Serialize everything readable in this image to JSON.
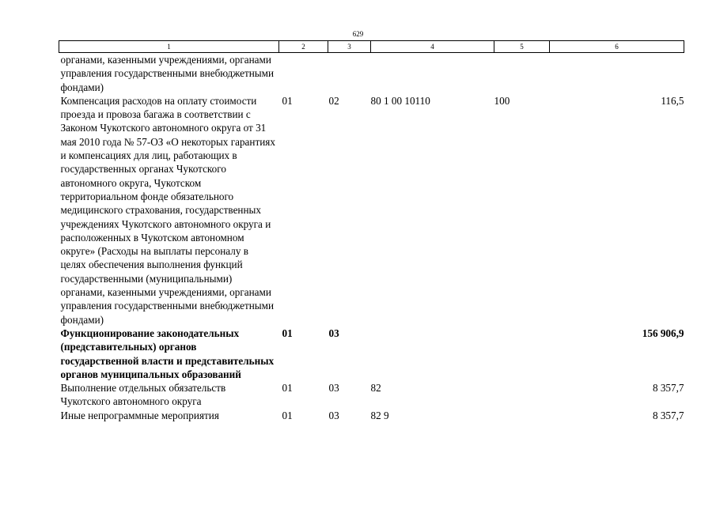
{
  "page_number": "629",
  "columns": [
    "1",
    "2",
    "3",
    "4",
    "5",
    "6"
  ],
  "rows": [
    {
      "name": "органами, казенными учреждениями, органами управления государственными внебюджетными фондами)",
      "section": "",
      "subsection": "",
      "target": "",
      "type": "",
      "amount": "",
      "bold": false
    },
    {
      "name": "Компенсация расходов на оплату стоимости проезда и провоза багажа в соответствии с Законом Чукотского автономного округа от 31 мая 2010 года № 57-ОЗ «О некоторых гарантиях и компенсациях для лиц, работающих в государственных органах Чукотского автономного округа, Чукотском территориальном фонде обязательного медицинского страхования, государственных учреждениях Чукотского автономного округа и расположенных в Чукотском автономном округе» (Расходы на выплаты персоналу в целях обеспечения выполнения функций государственными (муниципальными) органами, казенными учреждениями, органами управления государственными внебюджетными фондами)",
      "section": "01",
      "subsection": "02",
      "target": "80 1 00 10110",
      "type": "100",
      "amount": "116,5",
      "bold": false
    },
    {
      "name": "Функционирование законодательных (представительных) органов государственной власти и представительных органов муниципальных образований",
      "section": "01",
      "subsection": "03",
      "target": "",
      "type": "",
      "amount": "156 906,9",
      "bold": true
    },
    {
      "name": "Выполнение отдельных обязательств Чукотского автономного округа",
      "section": "01",
      "subsection": "03",
      "target": "82",
      "type": "",
      "amount": "8 357,7",
      "bold": false
    },
    {
      "name": "Иные непрограммные мероприятия",
      "section": "01",
      "subsection": "03",
      "target": "82 9",
      "type": "",
      "amount": "8 357,7",
      "bold": false
    }
  ]
}
